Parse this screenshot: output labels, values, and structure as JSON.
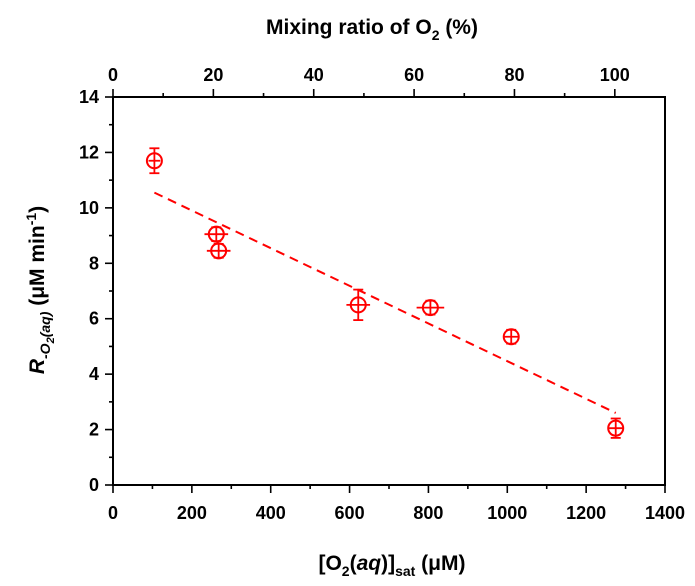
{
  "chart_data": {
    "type": "scatter",
    "title": "",
    "xlabel": {
      "main": "[O",
      "sub1": "2",
      "mid": "(",
      "italic": "aq",
      "close": ")]",
      "sub2": "sat",
      "unit": " (μM)"
    },
    "x2label": {
      "main": "Mixing ratio of O",
      "sub": "2",
      "unit": " (%)"
    },
    "ylabel": {
      "R": "R",
      "sub_a": "-O",
      "sub_b": "2",
      "sub_c": "(aq)",
      "unit": " (μM min",
      "sup": "-1",
      "close": ")"
    },
    "xlim": [
      0,
      1400
    ],
    "ylim": [
      0,
      14
    ],
    "x2lim": [
      0,
      110
    ],
    "xticks": [
      "0",
      "200",
      "400",
      "600",
      "800",
      "1000",
      "1200",
      "1400"
    ],
    "yticks": [
      "0",
      "2",
      "4",
      "6",
      "8",
      "10",
      "12",
      "14"
    ],
    "x2ticks": [
      "0",
      "20",
      "40",
      "60",
      "80",
      "100"
    ],
    "grid": false,
    "color": "#ff0000",
    "points": [
      {
        "x": 105,
        "y": 11.7,
        "xerr": 15,
        "yerr": 0.45
      },
      {
        "x": 262,
        "y": 9.05,
        "xerr": 30,
        "yerr": 0.25
      },
      {
        "x": 268,
        "y": 8.45,
        "xerr": 30,
        "yerr": 0.25
      },
      {
        "x": 622,
        "y": 6.5,
        "xerr": 30,
        "yerr": 0.55
      },
      {
        "x": 805,
        "y": 6.4,
        "xerr": 35,
        "yerr": 0.25
      },
      {
        "x": 1010,
        "y": 5.35,
        "xerr": 20,
        "yerr": 0.25
      },
      {
        "x": 1275,
        "y": 2.05,
        "xerr": 20,
        "yerr": 0.35
      }
    ],
    "fit_line": {
      "x": [
        105,
        1275
      ],
      "y": [
        10.55,
        2.6
      ]
    }
  }
}
